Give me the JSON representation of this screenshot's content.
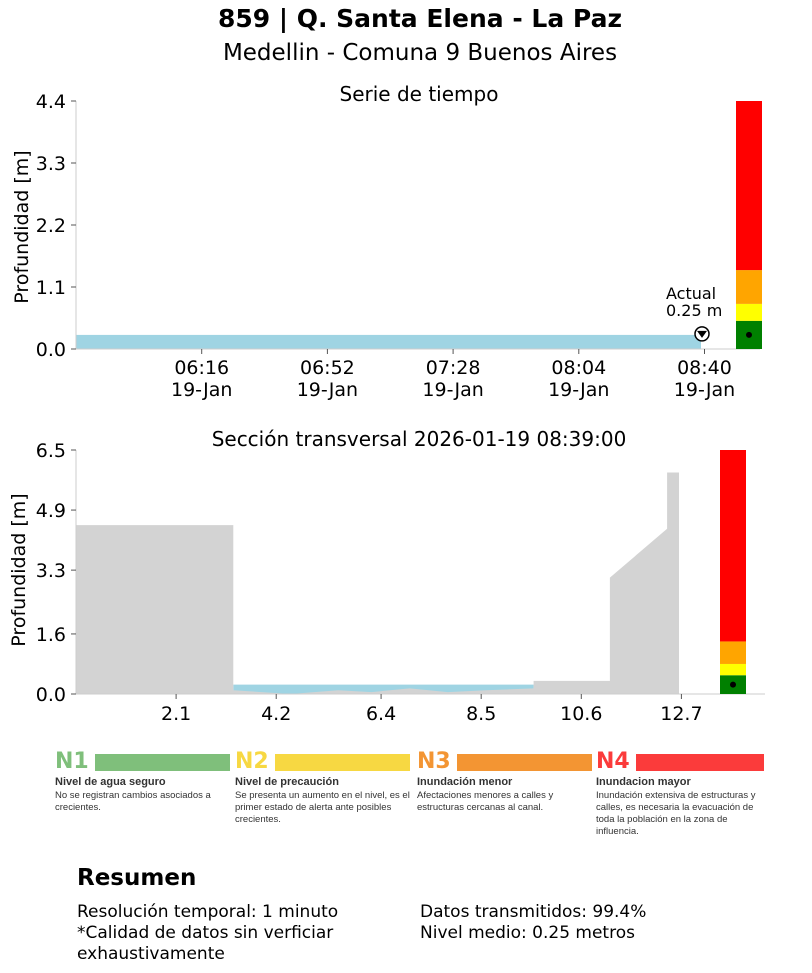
{
  "header": {
    "title": "859 | Q. Santa Elena - La Paz",
    "subtitle": "Medellin - Comuna 9 Buenos Aires"
  },
  "chart_data": [
    {
      "type": "area",
      "title": "Serie de tiempo",
      "ylabel": "Profundidad [m]",
      "ylim": [
        0,
        4.4
      ],
      "yticks": [
        "0.0",
        "1.1",
        "2.2",
        "3.3",
        "4.4"
      ],
      "xticks": [
        {
          "time": "06:16",
          "date": "19-Jan"
        },
        {
          "time": "06:52",
          "date": "19-Jan"
        },
        {
          "time": "07:28",
          "date": "19-Jan"
        },
        {
          "time": "08:04",
          "date": "19-Jan"
        },
        {
          "time": "08:40",
          "date": "19-Jan"
        }
      ],
      "x_range_minutes": [
        "05:40",
        "08:39"
      ],
      "series": [
        {
          "values": [
            0.25
          ]
        }
      ],
      "annotation": {
        "label": "Actual",
        "value": "0.25 m",
        "depth": 0.25
      },
      "level_bar": [
        {
          "from": 0,
          "to": 0.5,
          "color": "#008000"
        },
        {
          "from": 0.5,
          "to": 0.8,
          "color": "#ffff00"
        },
        {
          "from": 0.8,
          "to": 1.4,
          "color": "#ffa500"
        },
        {
          "from": 1.4,
          "to": 4.4,
          "color": "#ff0000"
        }
      ],
      "current_marker_depth": 0.25,
      "fill_color": "#9fd4e3",
      "grid": false
    },
    {
      "type": "area",
      "title": "Sección transversal 2026-01-19 08:39:00",
      "ylabel": "Profundidad [m]",
      "ylim": [
        0,
        6.5
      ],
      "yticks": [
        "0.0",
        "1.6",
        "3.3",
        "4.9",
        "6.5"
      ],
      "xlim": [
        0,
        13.3
      ],
      "xticks": [
        "2.1",
        "4.2",
        "6.4",
        "8.5",
        "10.6",
        "12.7"
      ],
      "xtick_values": [
        2.1,
        4.2,
        6.4,
        8.5,
        10.6,
        12.7
      ],
      "terrain_profile": [
        [
          0,
          4.5
        ],
        [
          3.3,
          4.5
        ],
        [
          3.3,
          0.1
        ],
        [
          4.5,
          0.0
        ],
        [
          5.5,
          0.1
        ],
        [
          6.2,
          0.05
        ],
        [
          7.0,
          0.15
        ],
        [
          7.8,
          0.05
        ],
        [
          8.6,
          0.1
        ],
        [
          9.6,
          0.15
        ],
        [
          9.6,
          0.35
        ],
        [
          11.2,
          0.35
        ],
        [
          11.2,
          3.1
        ],
        [
          12.4,
          4.4
        ],
        [
          12.4,
          5.9
        ],
        [
          12.65,
          5.9
        ],
        [
          12.65,
          0
        ]
      ],
      "water_level": 0.25,
      "water_range": [
        3.3,
        9.6
      ],
      "level_bar": [
        {
          "from": 0,
          "to": 0.5,
          "color": "#008000"
        },
        {
          "from": 0.5,
          "to": 0.8,
          "color": "#ffff00"
        },
        {
          "from": 0.8,
          "to": 1.4,
          "color": "#ffa500"
        },
        {
          "from": 1.4,
          "to": 6.5,
          "color": "#ff0000"
        }
      ],
      "current_marker_depth": 0.25,
      "ground_color": "#d3d3d3",
      "water_color": "#9fd4e3",
      "grid": false
    }
  ],
  "legend": [
    {
      "code": "N1",
      "name": "Nivel de agua seguro",
      "desc": "No se registran cambios asociados a crecientes.",
      "color": "#7fbf7b",
      "code_color": "#7fbf7b"
    },
    {
      "code": "N2",
      "name": "Nivel de precaución",
      "desc": "Se presenta un aumento en el nivel, es el primer estado de alerta ante posibles crecientes.",
      "color": "#f7d842",
      "code_color": "#f7d842"
    },
    {
      "code": "N3",
      "name": "Inundación menor",
      "desc": "Afectaciones menores a calles y estructuras cercanas al canal.",
      "color": "#f39533",
      "code_color": "#f39533"
    },
    {
      "code": "N4",
      "name": "Inundacion mayor",
      "desc": "Inundación extensiva de estructuras y calles, es necesaria la evacuación de toda la población en la zona de influencia.",
      "color": "#fb3b3b",
      "code_color": "#fb3b3b"
    }
  ],
  "summary": {
    "title": "Resumen",
    "left": [
      "Resolución temporal: 1 minuto",
      "*Calidad de datos sin verficiar exhaustivamente"
    ],
    "right": [
      "Datos transmitidos: 99.4%",
      "Nivel medio: 0.25 metros"
    ]
  }
}
